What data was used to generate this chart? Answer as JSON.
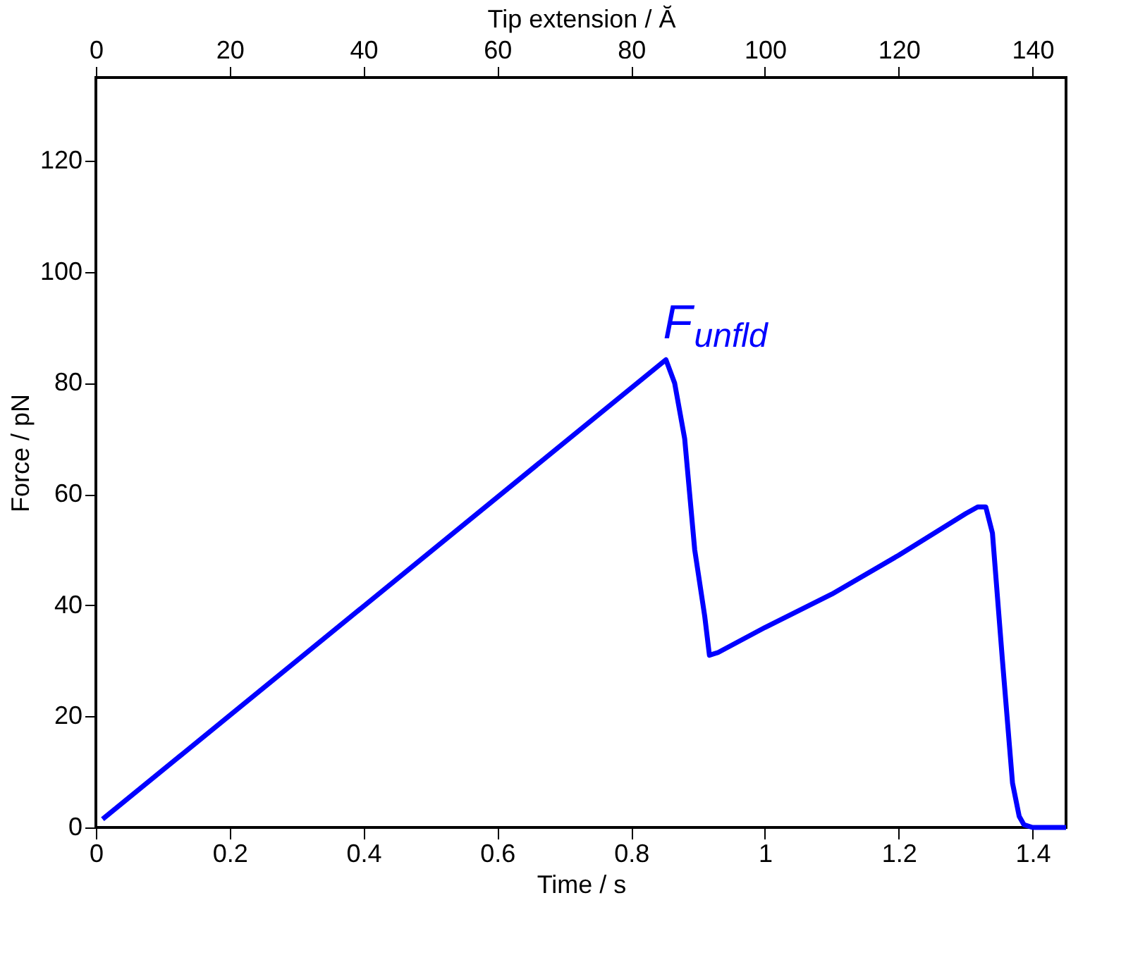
{
  "chart_data": {
    "type": "line",
    "xlabel": "Time / s",
    "ylabel": "Force / pN",
    "x2label": "Tip extension / Ă",
    "xlim": [
      0,
      1.45
    ],
    "xticks": [
      0,
      {
        "value": 0.2,
        "label": "0.2"
      },
      {
        "value": 0.4,
        "label": "0.4"
      },
      {
        "value": 0.6,
        "label": "0.6"
      },
      {
        "value": 0.8,
        "label": "0.8"
      },
      1,
      {
        "value": 1.2,
        "label": "1.2"
      },
      {
        "value": 1.4,
        "label": "1.4"
      }
    ],
    "x2lim": [
      0,
      145
    ],
    "x2ticks": [
      0,
      20,
      40,
      60,
      80,
      100,
      120,
      140
    ],
    "ylim": [
      0,
      135
    ],
    "yticks": [
      0,
      20,
      40,
      60,
      80,
      100,
      120
    ],
    "grid": false,
    "marker": "none",
    "line_style": "solid",
    "series": [
      {
        "color": "#0000ff",
        "x": [
          0.01,
          0.852,
          0.865,
          0.88,
          0.895,
          0.91,
          0.917,
          0.93,
          1.0,
          1.1,
          1.2,
          1.3,
          1.318,
          1.33,
          1.34,
          1.355,
          1.37,
          1.38,
          1.387,
          1.4,
          1.45
        ],
        "values": [
          1.5,
          84.2,
          80,
          70,
          50,
          38,
          31,
          31.5,
          36,
          42,
          49,
          56.5,
          57.7,
          57.7,
          53,
          30,
          8,
          2,
          0.5,
          0,
          0
        ]
      }
    ],
    "annotations": [
      {
        "text": "F$_{unfld}$",
        "x": 0.852,
        "y": 84.2
      }
    ]
  }
}
